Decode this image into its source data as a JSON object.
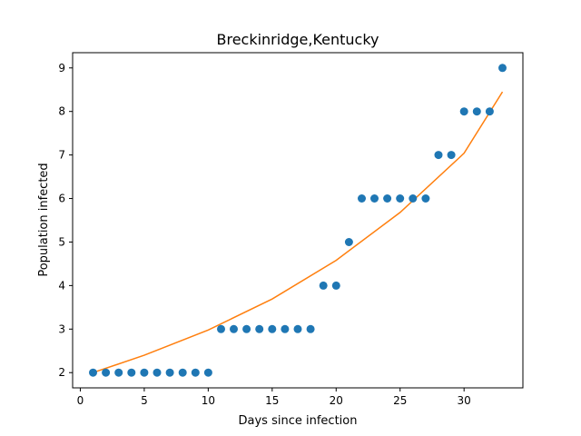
{
  "chart_data": {
    "type": "scatter",
    "title": "Breckinridge,Kentucky",
    "xlabel": "Days since infection",
    "ylabel": "Population infected",
    "xlim": [
      -0.6,
      34.6
    ],
    "ylim": [
      1.65,
      9.35
    ],
    "xticks": [
      0,
      5,
      10,
      15,
      20,
      25,
      30
    ],
    "yticks": [
      2,
      3,
      4,
      5,
      6,
      7,
      8,
      9
    ],
    "grid": false,
    "series": [
      {
        "kind": "scatter",
        "color": "#1f77b4",
        "x": [
          1,
          2,
          3,
          4,
          5,
          6,
          7,
          8,
          9,
          10,
          11,
          12,
          13,
          14,
          15,
          16,
          17,
          18,
          19,
          20,
          21,
          22,
          23,
          24,
          25,
          26,
          27,
          28,
          29,
          30,
          31,
          32,
          33
        ],
        "y": [
          2,
          2,
          2,
          2,
          2,
          2,
          2,
          2,
          2,
          2,
          3,
          3,
          3,
          3,
          3,
          3,
          3,
          3,
          4,
          4,
          5,
          6,
          6,
          6,
          6,
          6,
          6,
          7,
          7,
          8,
          8,
          8,
          9
        ]
      },
      {
        "kind": "line",
        "color": "#ff7f0e",
        "x": [
          1,
          5,
          10,
          15,
          20,
          25,
          30,
          33
        ],
        "y": [
          2.0,
          2.4,
          2.98,
          3.69,
          4.58,
          5.68,
          7.04,
          8.45
        ]
      }
    ]
  }
}
